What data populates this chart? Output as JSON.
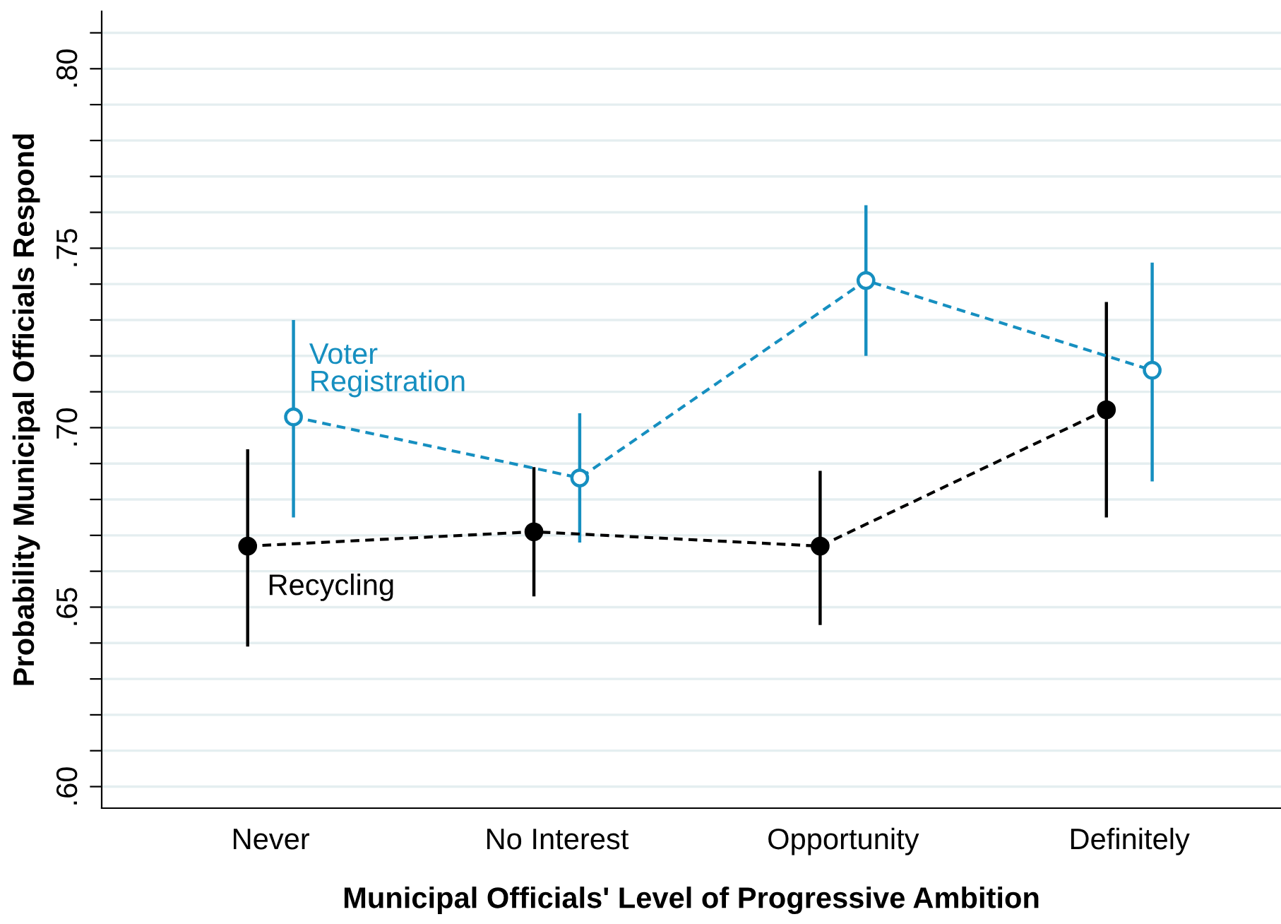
{
  "chart_data": {
    "type": "line",
    "xlabel": "Municipal Officials' Level of Progressive Ambition",
    "ylabel": "Probability Municipal Officials Respond",
    "categories": [
      "Never",
      "No Interest",
      "Opportunity",
      "Definitely"
    ],
    "series": [
      {
        "name": "Recycling",
        "color": "#000000",
        "marker": "circle",
        "line_style": "dashed",
        "values": [
          0.667,
          0.671,
          0.667,
          0.705
        ],
        "errors": [
          [
            0.639,
            0.694
          ],
          [
            0.653,
            0.689
          ],
          [
            0.645,
            0.688
          ],
          [
            0.675,
            0.735
          ]
        ]
      },
      {
        "name": "Voter\nRegistration",
        "color": "#168fc0",
        "marker": "circle",
        "line_style": "dashed",
        "values": [
          0.703,
          0.686,
          0.741,
          0.716
        ],
        "errors": [
          [
            0.675,
            0.73
          ],
          [
            0.668,
            0.704
          ],
          [
            0.72,
            0.762
          ],
          [
            0.685,
            0.746
          ]
        ]
      }
    ],
    "ylim": [
      0.594,
      0.816
    ],
    "yticks": [
      {
        "value": 0.6,
        "label": ".60"
      },
      {
        "value": 0.61,
        "label": null
      },
      {
        "value": 0.62,
        "label": null
      },
      {
        "value": 0.63,
        "label": null
      },
      {
        "value": 0.64,
        "label": null
      },
      {
        "value": 0.65,
        "label": ".65"
      },
      {
        "value": 0.66,
        "label": null
      },
      {
        "value": 0.67,
        "label": null
      },
      {
        "value": 0.68,
        "label": null
      },
      {
        "value": 0.69,
        "label": null
      },
      {
        "value": 0.7,
        "label": ".70"
      },
      {
        "value": 0.71,
        "label": null
      },
      {
        "value": 0.72,
        "label": null
      },
      {
        "value": 0.73,
        "label": null
      },
      {
        "value": 0.74,
        "label": null
      },
      {
        "value": 0.75,
        "label": ".75"
      },
      {
        "value": 0.76,
        "label": null
      },
      {
        "value": 0.77,
        "label": null
      },
      {
        "value": 0.78,
        "label": null
      },
      {
        "value": 0.79,
        "label": null
      },
      {
        "value": 0.8,
        "label": ".80"
      },
      {
        "value": 0.81,
        "label": null
      }
    ],
    "grid": "y",
    "legend": false
  }
}
